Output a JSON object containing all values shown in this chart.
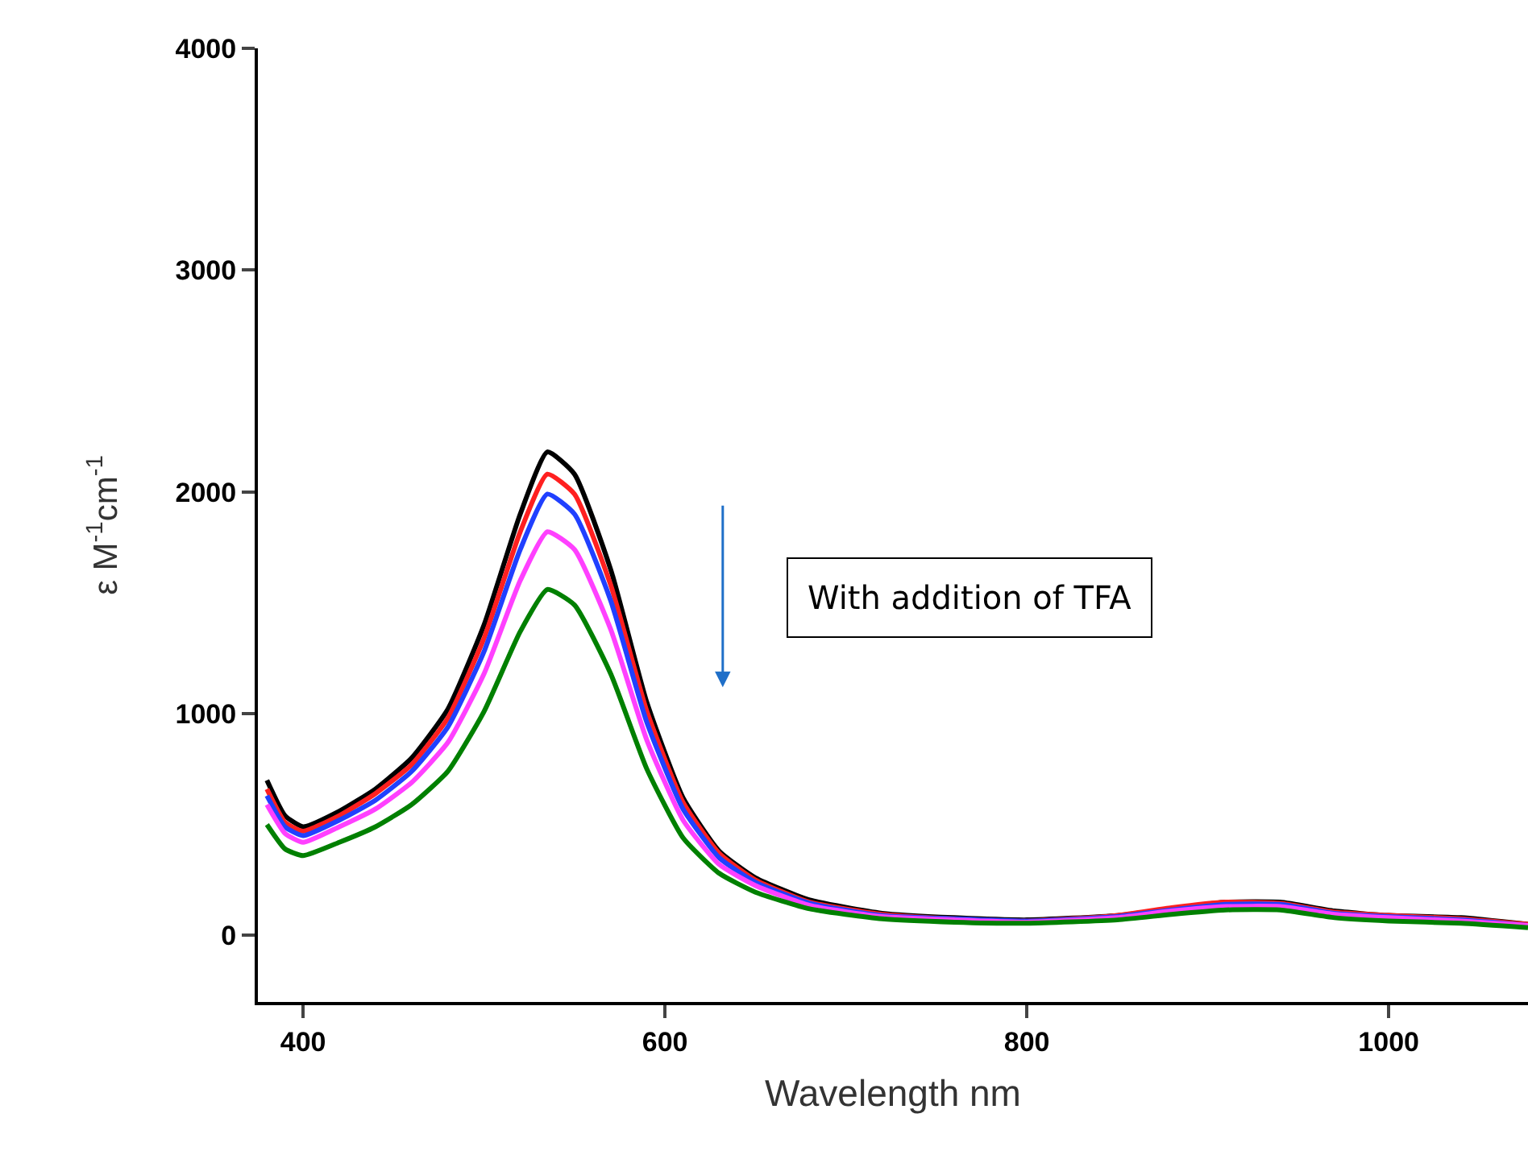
{
  "chart_data": {
    "type": "line",
    "xlabel": "Wavelength nm",
    "ylabel": "ε M$^{-1}$cm$^{-1}$",
    "x": [
      380,
      390,
      400,
      420,
      440,
      460,
      480,
      500,
      520,
      535,
      550,
      570,
      590,
      610,
      630,
      650,
      680,
      720,
      760,
      800,
      850,
      880,
      910,
      940,
      970,
      1000,
      1040,
      1077
    ],
    "series": [
      {
        "color": "#000000",
        "values": [
          700,
          540,
          490,
          560,
          660,
          800,
          1020,
          1400,
          1900,
          2180,
          2080,
          1650,
          1050,
          620,
          380,
          260,
          160,
          100,
          80,
          70,
          90,
          120,
          150,
          150,
          110,
          90,
          80,
          50
        ]
      },
      {
        "color": "#ff2020",
        "values": [
          660,
          510,
          470,
          540,
          640,
          770,
          980,
          1340,
          1820,
          2080,
          1990,
          1580,
          1010,
          600,
          370,
          250,
          150,
          95,
          75,
          65,
          90,
          125,
          150,
          145,
          105,
          90,
          75,
          50
        ]
      },
      {
        "color": "#2040ff",
        "values": [
          630,
          490,
          450,
          520,
          610,
          740,
          940,
          1280,
          1740,
          1990,
          1900,
          1510,
          960,
          570,
          350,
          240,
          145,
          90,
          75,
          65,
          85,
          115,
          140,
          140,
          100,
          85,
          70,
          45
        ]
      },
      {
        "color": "#ff40ff",
        "values": [
          590,
          460,
          420,
          490,
          570,
          690,
          870,
          1180,
          1600,
          1820,
          1740,
          1380,
          880,
          520,
          320,
          225,
          135,
          85,
          70,
          60,
          80,
          110,
          130,
          130,
          95,
          80,
          65,
          45
        ]
      },
      {
        "color": "#008000",
        "values": [
          500,
          390,
          360,
          420,
          490,
          590,
          740,
          1010,
          1370,
          1560,
          1490,
          1180,
          750,
          440,
          280,
          195,
          120,
          75,
          60,
          55,
          70,
          95,
          115,
          115,
          80,
          65,
          55,
          35
        ]
      }
    ],
    "xlim": [
      375,
      1077
    ],
    "ylim": [
      -300,
      4000
    ],
    "xticks": [
      400,
      600,
      800,
      1000
    ],
    "yticks": [
      0,
      1000,
      2000,
      3000,
      4000
    ],
    "annotations": [
      "With addition of TFA"
    ],
    "marker": "none",
    "line_style": "solid"
  }
}
